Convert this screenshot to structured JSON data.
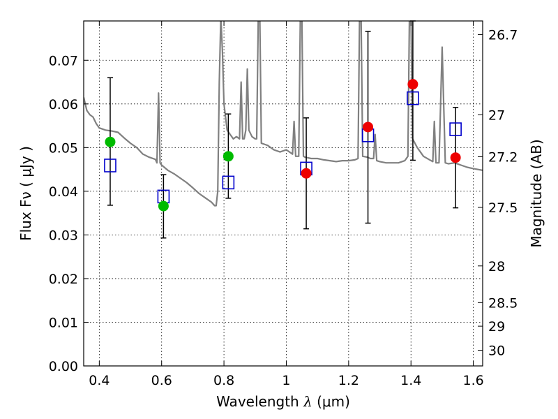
{
  "chart_data": {
    "type": "scatter",
    "title": "",
    "xlabel": "Wavelength  λ (μm)",
    "ylabel": "Flux  Fν  ( μJy )",
    "y2label": "Magnitude (AB)",
    "xlim": [
      0.35,
      1.63
    ],
    "ylim": [
      0.0,
      0.079
    ],
    "grid": true,
    "x_ticks": [
      0.4,
      0.6,
      0.8,
      1.0,
      1.2,
      1.4,
      1.6
    ],
    "x_tick_labels": [
      "0.4",
      "0.6",
      "0.8",
      "1",
      "1.2",
      "1.4",
      "1.6"
    ],
    "y_ticks": [
      0.0,
      0.01,
      0.02,
      0.03,
      0.04,
      0.05,
      0.06,
      0.07
    ],
    "y_tick_labels": [
      "0.00",
      "0.01",
      "0.02",
      "0.03",
      "0.04",
      "0.05",
      "0.06",
      "0.07"
    ],
    "y2_ticks": [
      {
        "label": "26.7",
        "flux": 0.0759
      },
      {
        "label": "27",
        "flux": 0.0575
      },
      {
        "label": "27.2",
        "flux": 0.0479
      },
      {
        "label": "27.5",
        "flux": 0.0363
      },
      {
        "label": "28",
        "flux": 0.0229
      },
      {
        "label": "28.5",
        "flux": 0.0145
      },
      {
        "label": "29",
        "flux": 0.0091
      },
      {
        "label": "30",
        "flux": 0.0036
      }
    ],
    "colors": {
      "spectrum": "#808080",
      "model_box": "#0000cc",
      "obs_green": "#00bb00",
      "obs_red": "#ee0000",
      "errorbar": "#000000",
      "grid": "#000000"
    },
    "series": [
      {
        "kind": "model_photometry",
        "marker": "open-square",
        "points": [
          {
            "x": 0.435,
            "y": 0.0459
          },
          {
            "x": 0.606,
            "y": 0.0388
          },
          {
            "x": 0.814,
            "y": 0.042
          },
          {
            "x": 1.064,
            "y": 0.0452
          },
          {
            "x": 1.262,
            "y": 0.0528
          },
          {
            "x": 1.406,
            "y": 0.0613
          },
          {
            "x": 1.543,
            "y": 0.0542
          }
        ]
      },
      {
        "kind": "observed_photometry",
        "marker": "filled-circle",
        "points": [
          {
            "x": 0.435,
            "y": 0.0513,
            "yerr_low": 0.0368,
            "yerr_high": 0.066,
            "color": "green"
          },
          {
            "x": 0.606,
            "y": 0.0366,
            "yerr_low": 0.0293,
            "yerr_high": 0.0438,
            "color": "green"
          },
          {
            "x": 0.814,
            "y": 0.048,
            "yerr_low": 0.0384,
            "yerr_high": 0.0577,
            "color": "green"
          },
          {
            "x": 1.064,
            "y": 0.0441,
            "yerr_low": 0.0314,
            "yerr_high": 0.0568,
            "color": "red"
          },
          {
            "x": 1.262,
            "y": 0.0547,
            "yerr_low": 0.0327,
            "yerr_high": 0.0766,
            "color": "red"
          },
          {
            "x": 1.406,
            "y": 0.0645,
            "yerr_low": 0.0471,
            "yerr_high": 0.079,
            "color": "red"
          },
          {
            "x": 1.543,
            "y": 0.0477,
            "yerr_low": 0.0362,
            "yerr_high": 0.0592,
            "color": "red"
          }
        ]
      },
      {
        "kind": "model_spectrum",
        "marker": "line",
        "points": [
          [
            0.35,
            0.0615
          ],
          [
            0.36,
            0.0585
          ],
          [
            0.37,
            0.0575
          ],
          [
            0.38,
            0.057
          ],
          [
            0.39,
            0.0555
          ],
          [
            0.4,
            0.0545
          ],
          [
            0.42,
            0.054
          ],
          [
            0.44,
            0.0538
          ],
          [
            0.46,
            0.0535
          ],
          [
            0.48,
            0.0522
          ],
          [
            0.5,
            0.051
          ],
          [
            0.52,
            0.05
          ],
          [
            0.54,
            0.0485
          ],
          [
            0.56,
            0.0478
          ],
          [
            0.58,
            0.0473
          ],
          [
            0.585,
            0.0465
          ],
          [
            0.59,
            0.0625
          ],
          [
            0.595,
            0.0465
          ],
          [
            0.6,
            0.046
          ],
          [
            0.62,
            0.0448
          ],
          [
            0.64,
            0.044
          ],
          [
            0.66,
            0.043
          ],
          [
            0.68,
            0.042
          ],
          [
            0.7,
            0.0408
          ],
          [
            0.72,
            0.0395
          ],
          [
            0.74,
            0.0385
          ],
          [
            0.76,
            0.0375
          ],
          [
            0.77,
            0.0367
          ],
          [
            0.775,
            0.0367
          ],
          [
            0.78,
            0.04
          ],
          [
            0.785,
            0.065
          ],
          [
            0.79,
            0.08
          ],
          [
            0.795,
            0.072
          ],
          [
            0.8,
            0.06
          ],
          [
            0.81,
            0.054
          ],
          [
            0.82,
            0.053
          ],
          [
            0.83,
            0.052
          ],
          [
            0.84,
            0.0525
          ],
          [
            0.85,
            0.052
          ],
          [
            0.855,
            0.065
          ],
          [
            0.86,
            0.052
          ],
          [
            0.865,
            0.052
          ],
          [
            0.87,
            0.054
          ],
          [
            0.875,
            0.068
          ],
          [
            0.88,
            0.054
          ],
          [
            0.89,
            0.0525
          ],
          [
            0.9,
            0.052
          ],
          [
            0.905,
            0.052
          ],
          [
            0.91,
            0.08
          ],
          [
            0.915,
            0.08
          ],
          [
            0.92,
            0.051
          ],
          [
            0.94,
            0.0505
          ],
          [
            0.96,
            0.0495
          ],
          [
            0.98,
            0.049
          ],
          [
            1.0,
            0.0495
          ],
          [
            1.02,
            0.0485
          ],
          [
            1.025,
            0.056
          ],
          [
            1.03,
            0.048
          ],
          [
            1.04,
            0.048
          ],
          [
            1.045,
            0.08
          ],
          [
            1.05,
            0.08
          ],
          [
            1.055,
            0.048
          ],
          [
            1.06,
            0.0478
          ],
          [
            1.08,
            0.0475
          ],
          [
            1.1,
            0.0475
          ],
          [
            1.12,
            0.0472
          ],
          [
            1.14,
            0.047
          ],
          [
            1.16,
            0.0468
          ],
          [
            1.18,
            0.047
          ],
          [
            1.2,
            0.047
          ],
          [
            1.22,
            0.0472
          ],
          [
            1.23,
            0.0475
          ],
          [
            1.235,
            0.08
          ],
          [
            1.24,
            0.08
          ],
          [
            1.245,
            0.048
          ],
          [
            1.26,
            0.0478
          ],
          [
            1.27,
            0.0475
          ],
          [
            1.28,
            0.0475
          ],
          [
            1.285,
            0.053
          ],
          [
            1.29,
            0.047
          ],
          [
            1.3,
            0.0468
          ],
          [
            1.32,
            0.0465
          ],
          [
            1.34,
            0.0465
          ],
          [
            1.36,
            0.0465
          ],
          [
            1.38,
            0.047
          ],
          [
            1.39,
            0.048
          ],
          [
            1.395,
            0.08
          ],
          [
            1.4,
            0.08
          ],
          [
            1.405,
            0.052
          ],
          [
            1.42,
            0.05
          ],
          [
            1.44,
            0.048
          ],
          [
            1.46,
            0.0472
          ],
          [
            1.47,
            0.0468
          ],
          [
            1.475,
            0.056
          ],
          [
            1.48,
            0.0465
          ],
          [
            1.49,
            0.0465
          ],
          [
            1.495,
            0.06
          ],
          [
            1.5,
            0.073
          ],
          [
            1.505,
            0.06
          ],
          [
            1.51,
            0.0465
          ],
          [
            1.52,
            0.0463
          ],
          [
            1.54,
            0.0465
          ],
          [
            1.56,
            0.046
          ],
          [
            1.58,
            0.0455
          ],
          [
            1.6,
            0.0452
          ],
          [
            1.63,
            0.0448
          ]
        ]
      }
    ]
  }
}
